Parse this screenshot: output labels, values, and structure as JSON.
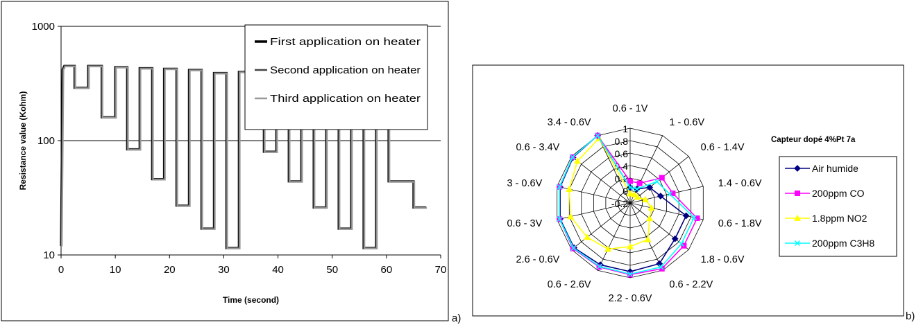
{
  "panel_labels": {
    "a": "a)",
    "b": "b)"
  },
  "chart_data": [
    {
      "type": "line",
      "title": "",
      "xlabel": "Time (second)",
      "ylabel": "Resistance value (Kohm)",
      "xlim": [
        0,
        70
      ],
      "ylim": [
        10,
        1000
      ],
      "y_scale": "log",
      "x_ticks": [
        0,
        10,
        20,
        30,
        40,
        50,
        60,
        70
      ],
      "y_ticks": [
        10,
        100,
        1000
      ],
      "y_tick_labels": [
        "10",
        "100",
        "1000"
      ],
      "grid": "horizontal major lines",
      "legend_position": "top-right",
      "colors": {
        "first": "#000000",
        "second": "#444444",
        "third": "#999999"
      },
      "series": [
        {
          "name": "First application on heater"
        },
        {
          "name": "Second application on heater"
        },
        {
          "name": "Third application on heater"
        }
      ],
      "step_profile": [
        [
          0,
          12
        ],
        [
          0.3,
          420
        ],
        [
          0.6,
          450
        ],
        [
          2.5,
          450
        ],
        [
          2.5,
          290
        ],
        [
          5,
          290
        ],
        [
          5,
          450
        ],
        [
          7.5,
          450
        ],
        [
          7.5,
          160
        ],
        [
          10,
          160
        ],
        [
          10,
          440
        ],
        [
          12.2,
          440
        ],
        [
          12.2,
          84
        ],
        [
          14.5,
          84
        ],
        [
          14.5,
          430
        ],
        [
          16.8,
          430
        ],
        [
          16.8,
          46
        ],
        [
          19,
          46
        ],
        [
          19,
          425
        ],
        [
          21.3,
          425
        ],
        [
          21.3,
          27
        ],
        [
          23.6,
          27
        ],
        [
          23.6,
          415
        ],
        [
          25.9,
          415
        ],
        [
          25.9,
          17
        ],
        [
          28.2,
          17
        ],
        [
          28.2,
          390
        ],
        [
          30.5,
          390
        ],
        [
          30.5,
          11.5
        ],
        [
          32.8,
          11.5
        ],
        [
          32.8,
          400
        ],
        [
          35.1,
          400
        ],
        [
          35.1,
          145
        ],
        [
          37.4,
          145
        ],
        [
          37.4,
          80
        ],
        [
          39.7,
          80
        ],
        [
          39.7,
          145
        ],
        [
          42,
          145
        ],
        [
          42,
          44
        ],
        [
          44.3,
          44
        ],
        [
          44.3,
          145
        ],
        [
          46.6,
          145
        ],
        [
          46.6,
          26
        ],
        [
          48.9,
          26
        ],
        [
          48.9,
          140
        ],
        [
          51.2,
          140
        ],
        [
          51.2,
          17
        ],
        [
          53.5,
          17
        ],
        [
          53.5,
          140
        ],
        [
          55.8,
          140
        ],
        [
          55.8,
          11.5
        ],
        [
          58.1,
          11.5
        ],
        [
          58.1,
          140
        ],
        [
          60.4,
          140
        ],
        [
          60.4,
          44
        ],
        [
          62.7,
          44
        ],
        [
          62.7,
          44
        ],
        [
          65,
          44
        ],
        [
          65,
          26
        ],
        [
          67.3,
          26
        ]
      ]
    },
    {
      "type": "radar",
      "title": "Capteur dopé 4%Pt 7a",
      "axes": [
        "0.6 - 1V",
        "1 - 0.6V",
        "0.6 - 1.4V",
        "1.4 - 0.6V",
        "0.6 - 1.8V",
        "1.8 - 0.6V",
        "0.6 - 2.2V",
        "2.2 - 0.6V",
        "0.6 - 2.6V",
        "2.6 - 0.6V",
        "0.6 - 3V",
        "3 - 0.6V",
        "0.6 - 3.4V",
        "3.4 - 0.6V"
      ],
      "r_ticks": [
        -0.2,
        0,
        0.2,
        0.4,
        0.6,
        0.8,
        1
      ],
      "r_tick_labels": [
        "-0.2",
        "0",
        "0.2",
        "0.4",
        "0.6",
        "0.8",
        "1"
      ],
      "rlim": [
        -0.2,
        1
      ],
      "legend_position": "right",
      "series": [
        {
          "name": "Air humide",
          "color": "#000080",
          "marker": "diamond",
          "values": [
            0.05,
            0.05,
            0.2,
            0.3,
            0.72,
            0.72,
            0.88,
            0.9,
            0.9,
            0.95,
            0.95,
            0.95,
            0.97,
            1.0
          ]
        },
        {
          "name": "200ppm CO",
          "color": "#ff00ff",
          "marker": "square",
          "values": [
            0.15,
            0.15,
            0.45,
            0.5,
            0.9,
            0.9,
            0.97,
            0.95,
            0.94,
            0.97,
            0.96,
            0.96,
            0.98,
            1.0
          ]
        },
        {
          "name": "1.8ppm NO2",
          "color": "#ffff00",
          "marker": "triangle",
          "values": [
            -0.05,
            -0.05,
            -0.05,
            0.05,
            0.15,
            0.2,
            0.45,
            0.5,
            0.62,
            0.68,
            0.78,
            0.8,
            0.88,
            0.95
          ]
        },
        {
          "name": "200ppm C3H8",
          "color": "#00ffff",
          "marker": "x",
          "values": [
            0.05,
            0.05,
            0.35,
            0.45,
            0.85,
            0.85,
            0.94,
            0.94,
            0.93,
            0.96,
            0.96,
            0.96,
            0.98,
            1.0
          ]
        }
      ]
    }
  ]
}
